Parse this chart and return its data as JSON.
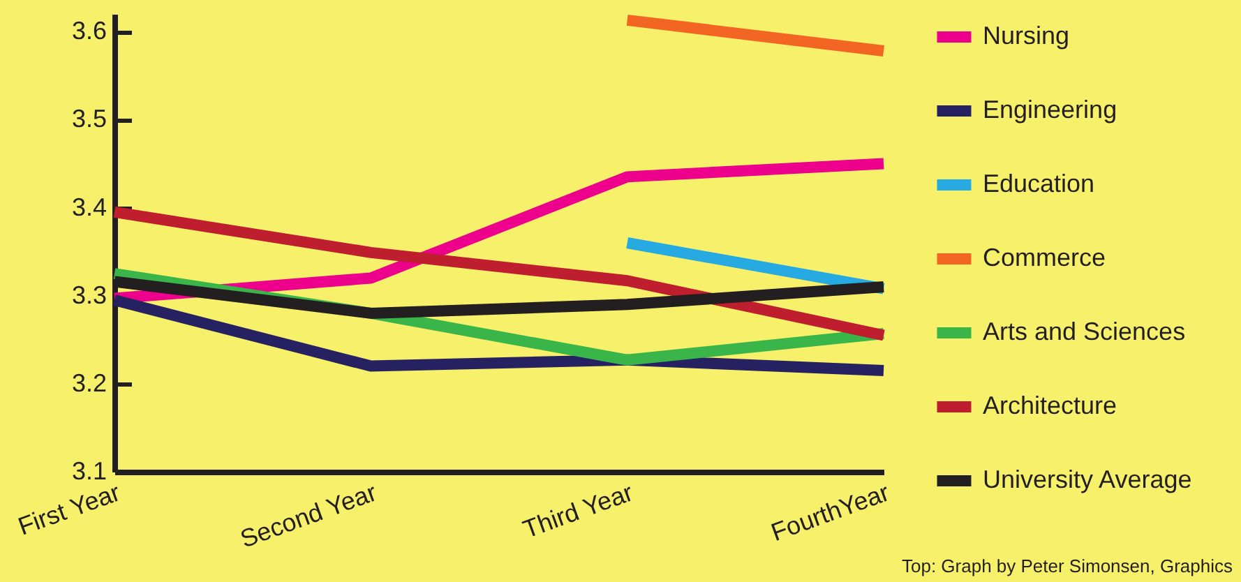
{
  "chart_data": {
    "type": "line",
    "categories": [
      "First Year",
      "Second Year",
      "Third Year",
      "FourthYear"
    ],
    "series": [
      {
        "name": "Nursing",
        "color": "#ec008c",
        "values": [
          3.297,
          3.32,
          3.435,
          3.45
        ]
      },
      {
        "name": "Engineering",
        "color": "#262262",
        "values": [
          3.295,
          3.22,
          3.227,
          3.215
        ]
      },
      {
        "name": "Education",
        "color": "#27aae1",
        "values": [
          null,
          null,
          3.36,
          3.308
        ]
      },
      {
        "name": "Commerce",
        "color": "#f26522",
        "values": [
          null,
          null,
          3.613,
          3.578
        ]
      },
      {
        "name": "Arts and Sciences",
        "color": "#39b54a",
        "values": [
          3.325,
          3.28,
          3.227,
          3.257
        ]
      },
      {
        "name": "Architecture",
        "color": "#be1e2d",
        "values": [
          3.395,
          3.349,
          3.317,
          3.255
        ]
      },
      {
        "name": "University Average",
        "color": "#231f20",
        "values": [
          3.316,
          3.28,
          3.29,
          3.31
        ]
      }
    ],
    "ylim": [
      3.1,
      3.62
    ],
    "yticks": [
      3.1,
      3.2,
      3.3,
      3.4,
      3.5,
      3.6
    ],
    "legend": "right",
    "grid": false,
    "marker": "none",
    "line_style": "solid",
    "annotations": [
      "Top: Graph by Peter Simonsen, Graphics"
    ]
  }
}
